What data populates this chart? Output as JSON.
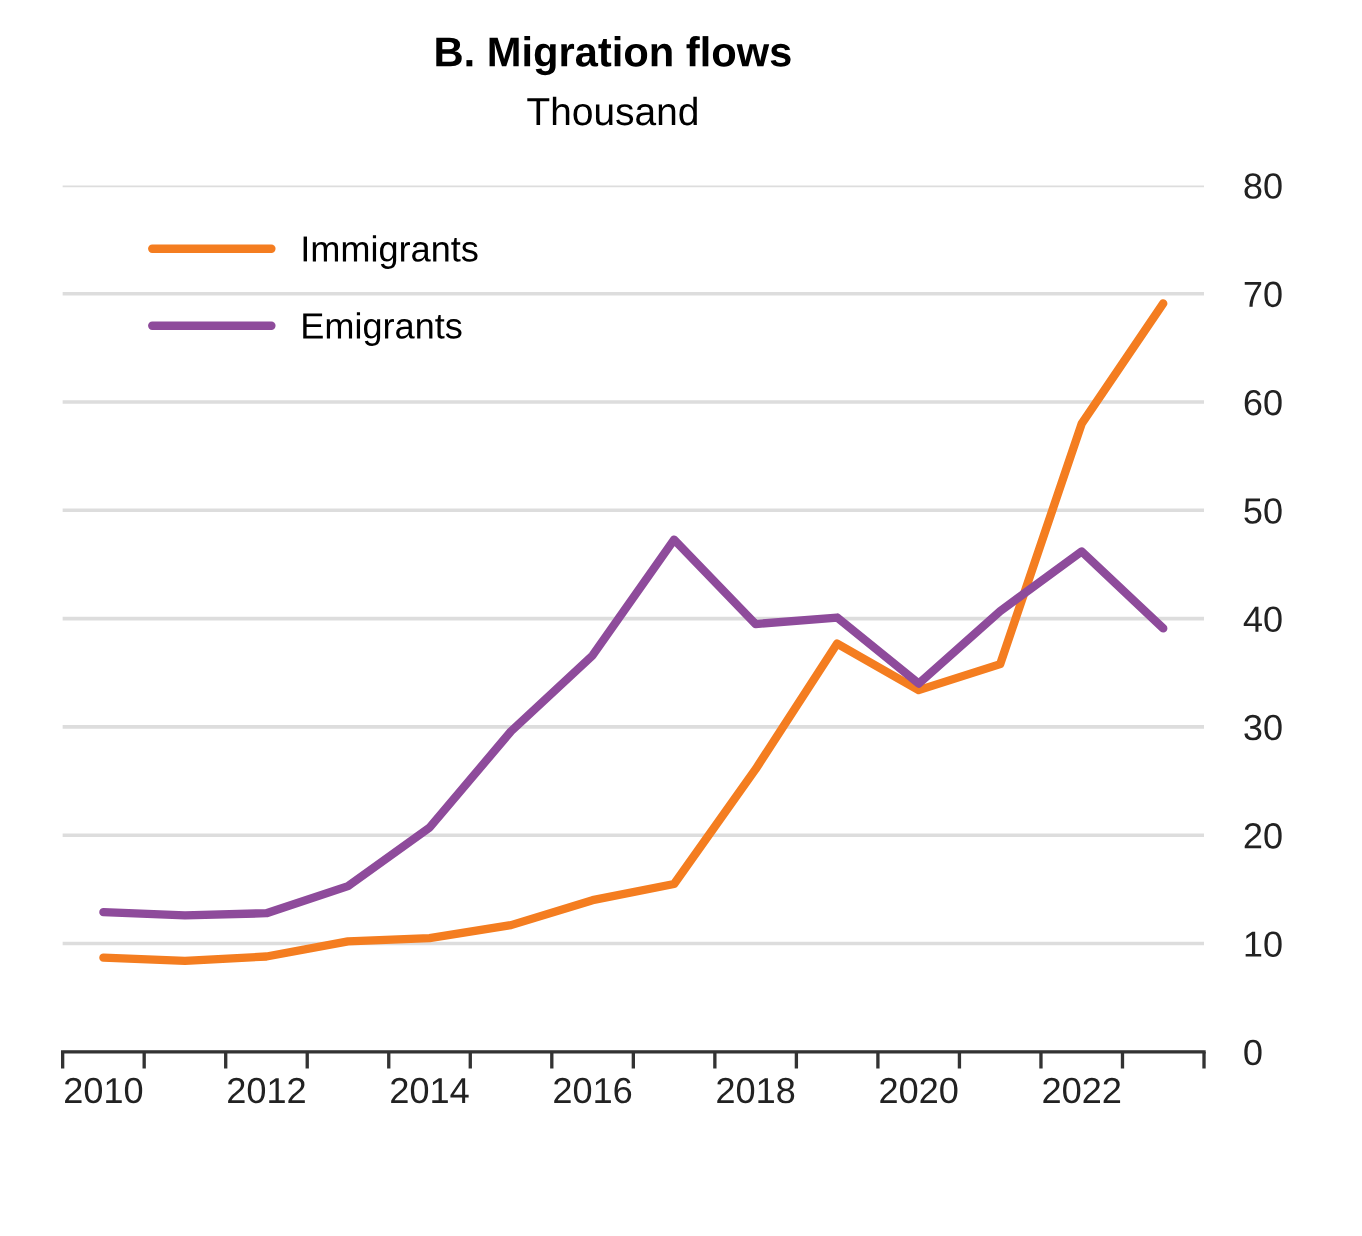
{
  "chart_data": {
    "type": "line",
    "title": "B. Migration flows",
    "subtitle": "Thousand",
    "x": [
      2010,
      2011,
      2012,
      2013,
      2014,
      2015,
      2016,
      2017,
      2018,
      2019,
      2020,
      2021,
      2022,
      2023
    ],
    "series": [
      {
        "name": "Immigrants",
        "color": "#f47d20",
        "values": [
          8.7,
          8.4,
          8.8,
          10.2,
          10.5,
          11.7,
          14.0,
          15.5,
          26.1,
          37.7,
          33.4,
          35.8,
          58.0,
          69.1
        ]
      },
      {
        "name": "Emigrants",
        "color": "#8e4b9b",
        "values": [
          12.9,
          12.6,
          12.8,
          15.3,
          20.7,
          29.6,
          36.6,
          47.3,
          39.5,
          40.1,
          34.0,
          40.7,
          46.2,
          39.1
        ]
      }
    ],
    "xlim": [
      2009.5,
      2023.5
    ],
    "xticks": [
      {
        "value": 2009.5,
        "label": null
      },
      2010,
      {
        "value": 2010.5,
        "label": null
      },
      {
        "value": 2011.5,
        "label": null
      },
      2012,
      {
        "value": 2012.5,
        "label": null
      },
      {
        "value": 2013.5,
        "label": null
      },
      2014,
      {
        "value": 2014.5,
        "label": null
      },
      {
        "value": 2015.5,
        "label": null
      },
      2016,
      {
        "value": 2016.5,
        "label": null
      },
      {
        "value": 2017.5,
        "label": null
      },
      2018,
      {
        "value": 2018.5,
        "label": null
      },
      {
        "value": 2019.5,
        "label": null
      },
      2020,
      {
        "value": 2020.5,
        "label": null
      },
      {
        "value": 2021.5,
        "label": null
      },
      2022,
      {
        "value": 2022.5,
        "label": null
      },
      {
        "value": 2023.5,
        "label": null
      }
    ],
    "ylim": [
      0,
      80
    ],
    "yticks": [
      0,
      10,
      20,
      30,
      40,
      50,
      60,
      70,
      80
    ],
    "grid": "y",
    "legend": "top left",
    "marker": "none",
    "line_style": "solid"
  }
}
